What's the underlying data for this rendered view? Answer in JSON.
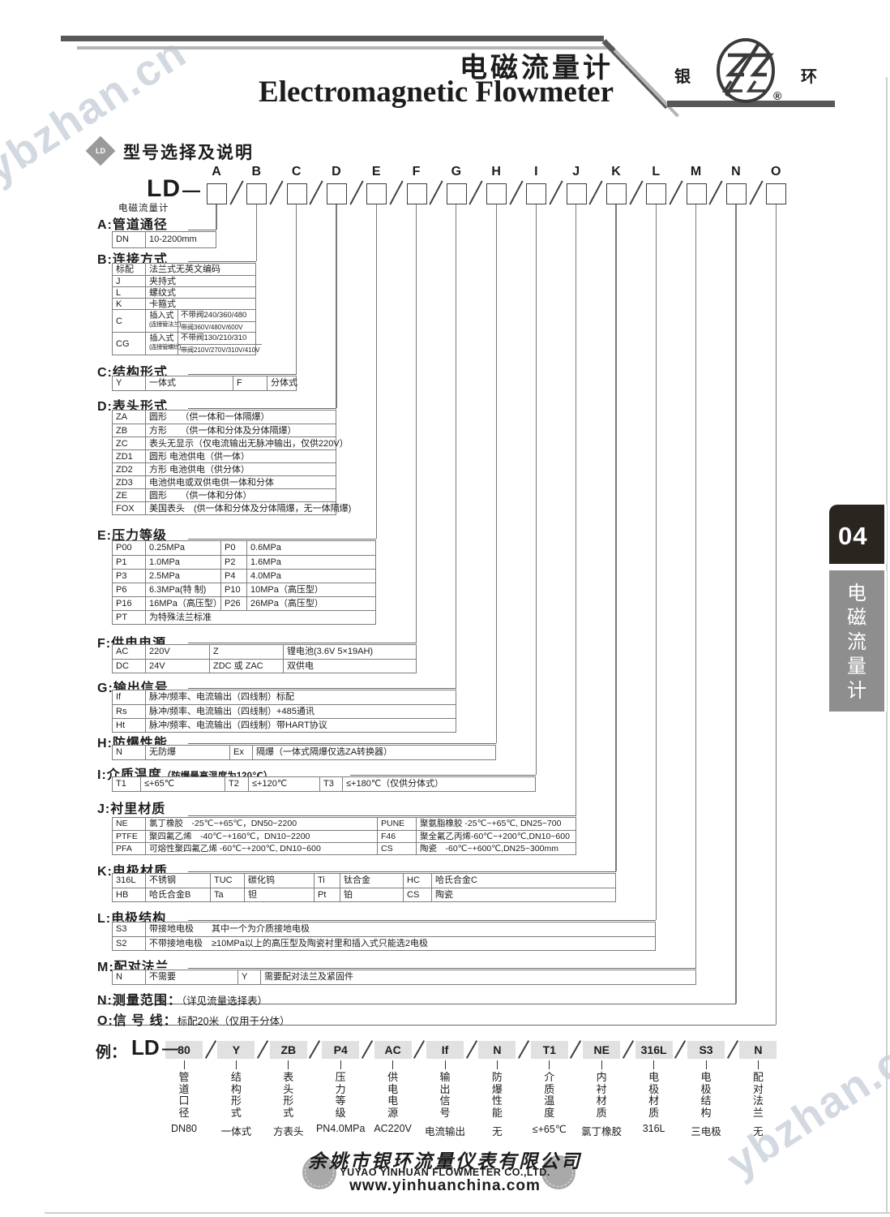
{
  "watermark_text": "ybzhan.cn",
  "colors": {
    "tab_dark": "#2b2520",
    "tab_gray": "#8e8e8e",
    "watermark": "#ccd3dc",
    "deco_dark": "#57585a",
    "deco_light": "#b4b5b7"
  },
  "header": {
    "title_cn": "电磁流量计",
    "title_en": "Electromagnetic Flowmeter",
    "logo": {
      "left": "银",
      "right": "环",
      "reg": "®"
    }
  },
  "section_heading": {
    "badge": "LD",
    "text": "型号选择及说明"
  },
  "model": {
    "prefix": "LD",
    "dash": "—",
    "prefix_sub": "电磁流量计",
    "positions": [
      "A",
      "B",
      "C",
      "D",
      "E",
      "F",
      "G",
      "H",
      "I",
      "J",
      "K",
      "L",
      "M",
      "N",
      "O"
    ]
  },
  "sections": {
    "A": {
      "title": "A:管道通径",
      "rows": [
        [
          "DN",
          "10-2200mm"
        ]
      ]
    },
    "B": {
      "title": "B:连接方式",
      "rows": [
        [
          "标配",
          "法兰式无英文编码"
        ],
        [
          "J",
          "夹持式"
        ],
        [
          "L",
          "螺纹式"
        ],
        [
          "K",
          "卡箍式"
        ]
      ],
      "insert_rows": [
        {
          "code": "C",
          "type": "插入式",
          "type_note": "(连接管法兰)",
          "lines": [
            "不带阀240/360/480",
            "带阀360V/480V/600V"
          ]
        },
        {
          "code": "CG",
          "type": "插入式",
          "type_note": "(连接管螺纹)",
          "lines": [
            "不带阀130/210/310",
            "带阀210V/270V/310V/410V"
          ]
        }
      ]
    },
    "C": {
      "title": "C:结构形式",
      "rows": [
        [
          "Y",
          "一体式",
          "F",
          "分体式"
        ]
      ]
    },
    "D": {
      "title": "D:表头形式",
      "rows": [
        [
          "ZA",
          "圆形　　（供一体和一体隔爆）"
        ],
        [
          "ZB",
          "方形　　（供一体和分体及分体隔爆）"
        ],
        [
          "ZC",
          "表头无显示（仅电流输出无脉冲输出，仅供220V）"
        ],
        [
          "ZD1",
          "圆形  电池供电（供一体）"
        ],
        [
          "ZD2",
          "方形  电池供电（供分体）"
        ],
        [
          "ZD3",
          "电池供电或双供电供一体和分体"
        ],
        [
          "ZE",
          "圆形　　（供一体和分体）"
        ],
        [
          "FOX",
          "美国表头　(供一体和分体及分体隔爆，无一体隔爆)"
        ]
      ]
    },
    "E": {
      "title": "E:压力等级",
      "rows": [
        [
          "P00",
          "0.25MPa",
          "P0",
          "0.6MPa"
        ],
        [
          "P1",
          "1.0MPa",
          "P2",
          "1.6MPa"
        ],
        [
          "P3",
          "2.5MPa",
          "P4",
          "4.0MPa"
        ],
        [
          "P6",
          "6.3MPa(特 制)",
          "P10",
          "10MPa（高压型）"
        ],
        [
          "P16",
          "16MPa（高压型）",
          "P26",
          "26MPa（高压型）"
        ],
        [
          "PT",
          "为特殊法兰标准"
        ]
      ]
    },
    "F": {
      "title": "F:供电电源",
      "rows": [
        [
          "AC",
          "220V",
          "Z",
          "锂电池(3.6V  5×19AH)"
        ],
        [
          "DC",
          "24V",
          "ZDC 或 ZAC",
          "双供电"
        ]
      ]
    },
    "G": {
      "title": "G:输出信号",
      "rows": [
        [
          "If",
          "脉冲/频率、电流输出（四线制）标配"
        ],
        [
          "Rs",
          "脉冲/频率、电流输出（四线制）+485通讯"
        ],
        [
          "Ht",
          "脉冲/频率、电流输出（四线制）带HART协议"
        ]
      ]
    },
    "H": {
      "title": "H:防爆性能",
      "rows": [
        [
          "N",
          "无防爆",
          "Ex",
          "隔爆（一体式隔爆仅选ZA转换器）"
        ]
      ]
    },
    "I": {
      "title": "I:介质温度",
      "title_note": "（防爆最高温度为120℃）",
      "rows": [
        [
          "T1",
          "≤+65℃",
          "T2",
          "≤+120℃",
          "T3",
          "≤+180℃（仅供分体式）"
        ]
      ]
    },
    "J": {
      "title": "J:衬里材质",
      "rows": [
        [
          "NE",
          "氯丁橡胶　-25℃~+65℃，DN50~2200",
          "PUNE",
          "聚氨脂橡胶  -25℃~+65℃, DN25~700"
        ],
        [
          "PTFE",
          "聚四氟乙烯　-40℃~+160℃，DN10~2200",
          "F46",
          "聚全氟乙丙烯-60℃~+200℃,DN10~600"
        ],
        [
          "PFA",
          "可熔性聚四氟乙烯 -60℃~+200℃, DN10~600",
          "CS",
          "陶瓷　-60℃~+600℃,DN25~300mm"
        ]
      ]
    },
    "K": {
      "title": "K:电极材质",
      "rows": [
        [
          "316L",
          "不锈钢",
          "TUC",
          "碳化钨",
          "Ti",
          "钛合金",
          "HC",
          "哈氏合金C"
        ],
        [
          "HB",
          "哈氏合金B",
          "Ta",
          "钽",
          "Pt",
          "铂",
          "CS",
          "陶瓷"
        ]
      ]
    },
    "L": {
      "title": "L:电极结构",
      "rows": [
        [
          "S3",
          "带接地电极　　其中一个为介质接地电极"
        ],
        [
          "S2",
          "不带接地电极　≥10MPa以上的高压型及陶瓷衬里和插入式只能选2电极"
        ]
      ]
    },
    "M": {
      "title": "M:配对法兰",
      "rows": [
        [
          "N",
          "不需要",
          "Y",
          "需要配对法兰及紧固件"
        ]
      ]
    },
    "N": {
      "title": "N:测量范围：",
      "title_note": "（详见流量选择表）",
      "rows": []
    },
    "O": {
      "title": "O:信 号 线：",
      "title_note": "标配20米（仅用于分体）",
      "rows": []
    }
  },
  "example": {
    "label": "例：",
    "prefix": "LD",
    "dash": "—",
    "items": [
      {
        "code": "80",
        "label": "管道口径",
        "value": "DN80"
      },
      {
        "code": "Y",
        "label": "结构形式",
        "value": "一体式"
      },
      {
        "code": "ZB",
        "label": "表头形式",
        "value": "方表头"
      },
      {
        "code": "P4",
        "label": "压力等级",
        "value": "PN4.0MPa"
      },
      {
        "code": "AC",
        "label": "供电电源",
        "value": "AC220V"
      },
      {
        "code": "If",
        "label": "输出信号",
        "value": "电流输出"
      },
      {
        "code": "N",
        "label": "防爆性能",
        "value": "无"
      },
      {
        "code": "T1",
        "label": "介质温度",
        "value": "≤+65℃"
      },
      {
        "code": "NE",
        "label": "内衬材质",
        "value": "氯丁橡胶"
      },
      {
        "code": "316L",
        "label": "电极材质",
        "value": "316L"
      },
      {
        "code": "S3",
        "label": "电极结构",
        "value": "三电极"
      },
      {
        "code": "N",
        "label": "配对法兰",
        "value": "无"
      }
    ]
  },
  "sidebar": {
    "page_number": "04",
    "tab_label": "电磁流量计"
  },
  "footer": {
    "company_cn": "余姚市银环流量仪表有限公司",
    "company_en": "YUYAO YINHUAN FLOWMETER CO.,LTD.",
    "website": "www.yinhuanchina.com"
  }
}
